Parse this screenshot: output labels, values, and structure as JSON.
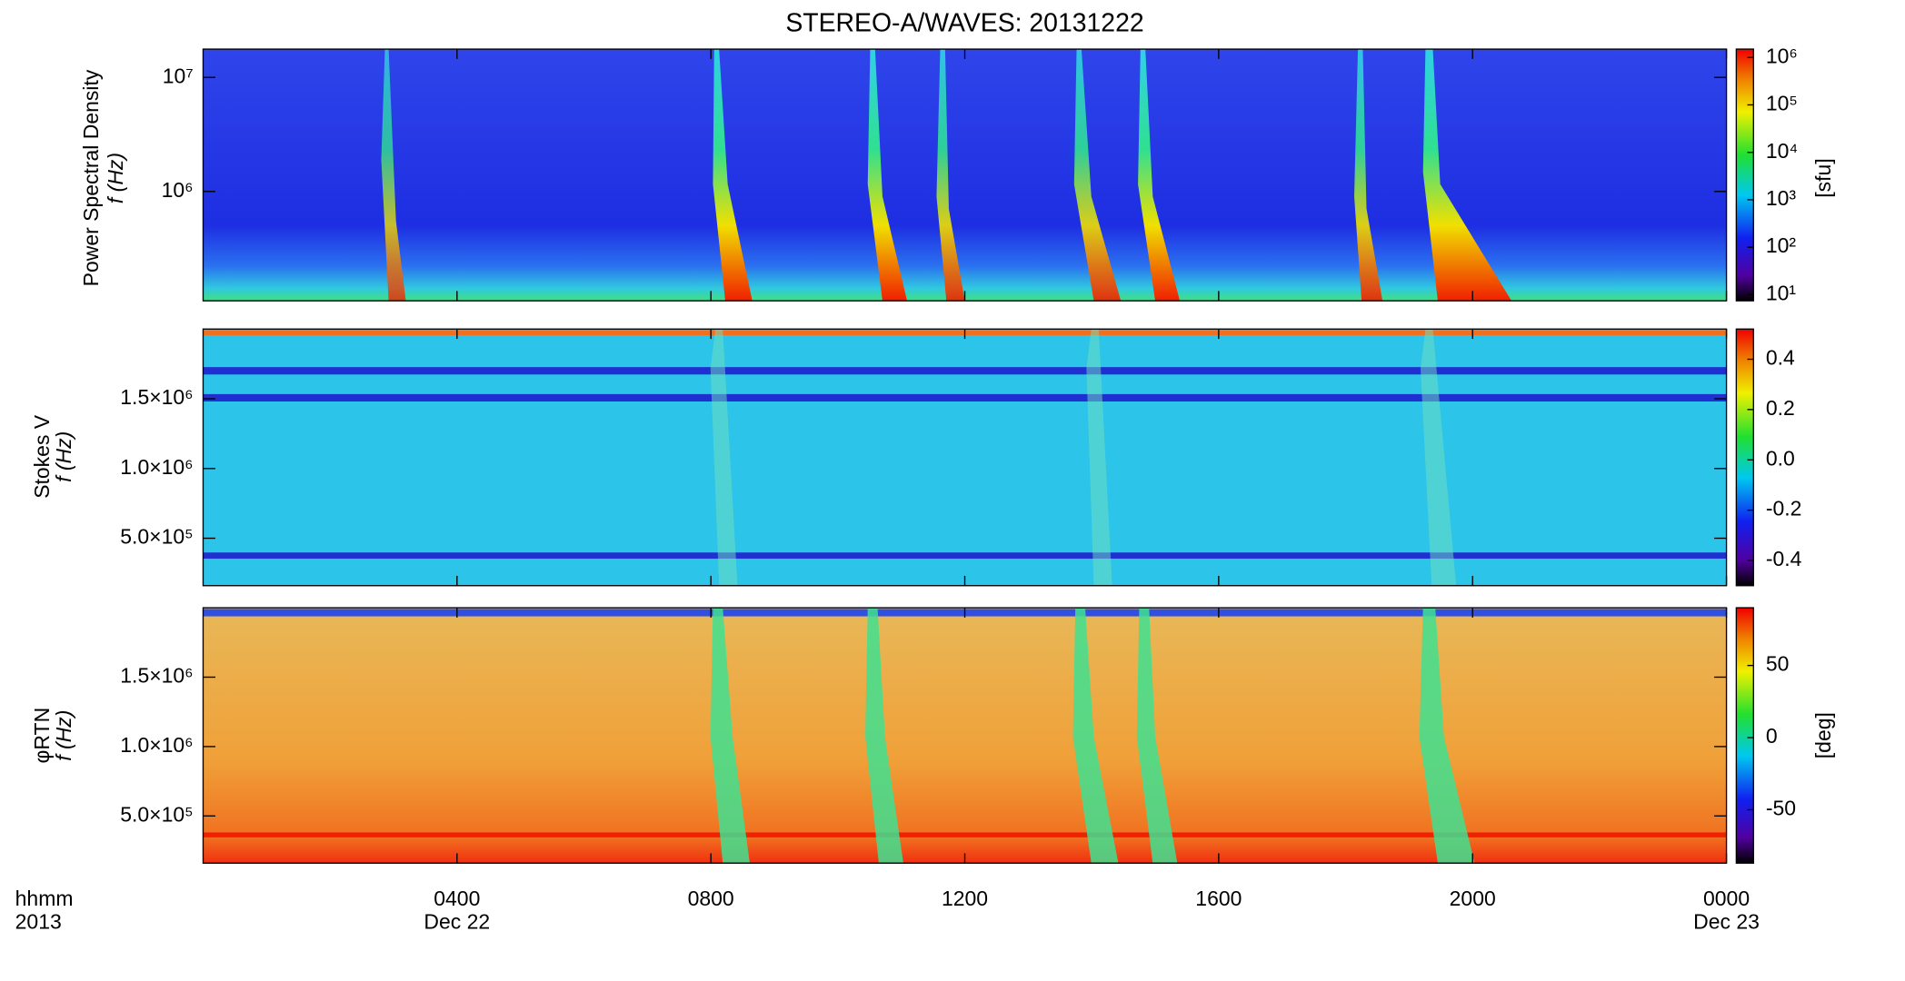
{
  "chart_data": [
    {
      "type": "heatmap",
      "title": "STEREO-A/WAVES: 20131222",
      "y_label": "Power Spectral Density",
      "y_label_2": "f (Hz)",
      "yscale": "log",
      "ylim": [
        110000,
        17700000
      ],
      "yticks": [
        {
          "value": 1000000,
          "label": "10⁶"
        },
        {
          "value": 10000000,
          "label": "10⁷"
        }
      ],
      "colorbar": {
        "label": "[sfu]",
        "scale": "log",
        "lim": [
          7.4,
          1500000
        ],
        "ticks": [
          {
            "value": 10,
            "label": "10¹"
          },
          {
            "value": 100,
            "label": "10²"
          },
          {
            "value": 1000,
            "label": "10³"
          },
          {
            "value": 10000,
            "label": "10⁴"
          },
          {
            "value": 100000,
            "label": "10⁵"
          },
          {
            "value": 1000000,
            "label": "10⁶"
          }
        ]
      }
    },
    {
      "type": "heatmap",
      "y_label": "Stokes V",
      "y_label_2": "f (Hz)",
      "yscale": "linear",
      "ylim": [
        160000,
        2000000
      ],
      "yticks": [
        {
          "value": 500000,
          "label": "5.0×10⁵"
        },
        {
          "value": 1000000,
          "label": "1.0×10⁶"
        },
        {
          "value": 1500000,
          "label": "1.5×10⁶"
        }
      ],
      "colorbar": {
        "scale": "linear",
        "lim": [
          -0.5,
          0.52
        ],
        "ticks": [
          {
            "value": -0.4,
            "label": "-0.4"
          },
          {
            "value": -0.2,
            "label": "-0.2"
          },
          {
            "value": 0,
            "label": "0.0"
          },
          {
            "value": 0.2,
            "label": "0.2"
          },
          {
            "value": 0.4,
            "label": "0.4"
          }
        ]
      }
    },
    {
      "type": "heatmap",
      "y_label": "φRTN",
      "y_label_2": "f (Hz)",
      "yscale": "linear",
      "ylim": [
        160000,
        2000000
      ],
      "yticks": [
        {
          "value": 500000,
          "label": "5.0×10⁵"
        },
        {
          "value": 1000000,
          "label": "1.0×10⁶"
        },
        {
          "value": 1500000,
          "label": "1.5×10⁶"
        }
      ],
      "colorbar": {
        "label": "[deg]",
        "scale": "linear",
        "lim": [
          -87,
          90
        ],
        "ticks": [
          -50,
          0,
          50
        ]
      },
      "x_label": [
        "hhmm",
        "2013"
      ],
      "xlim": [
        0,
        24
      ],
      "xticks": [
        {
          "value": 4,
          "label": "0400"
        },
        {
          "value": 8,
          "label": "0800"
        },
        {
          "value": 12,
          "label": "1200"
        },
        {
          "value": 16,
          "label": "1600"
        },
        {
          "value": 20,
          "label": "2000"
        },
        {
          "value": 24,
          "label": "0000"
        }
      ],
      "x_dates": [
        {
          "value": 4,
          "label": "Dec 22"
        },
        {
          "value": 24,
          "label": "Dec 23"
        }
      ]
    }
  ]
}
